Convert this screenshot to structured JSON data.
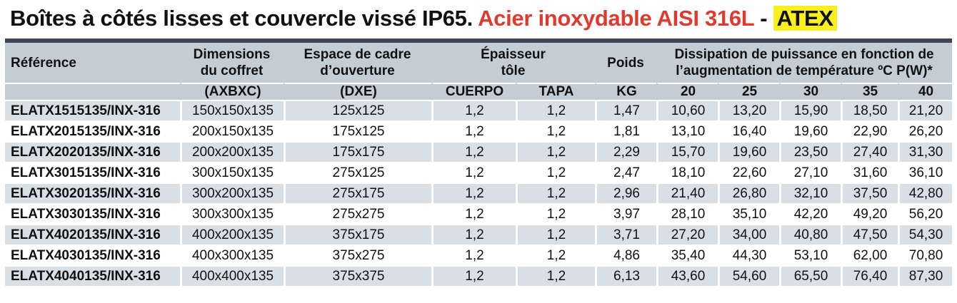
{
  "title": {
    "main": "Boîtes à côtés lisses et couvercle vissé IP65.",
    "material": "Acier inoxydable AISI 316L",
    "separator": "-",
    "certification": "ATEX"
  },
  "colors": {
    "material": "#e03a2f",
    "certification_bg": "#f7ef1e",
    "header_bg": "#c4cdd4",
    "stripe": "#d8e0e6",
    "top_bar": "#3d4652"
  },
  "headers": {
    "reference": "Référence",
    "dimensions_1": "Dimensions",
    "dimensions_2": "du coffret",
    "cutout_1": "Espace de cadre",
    "cutout_2": "d’ouverture",
    "thickness_1": "Épaisseur",
    "thickness_2": "tôle",
    "weight": "Poids",
    "dissipation_1": "Dissipation de puissance en fonction de",
    "dissipation_2": "l’augmentation de température ºC P(W)*"
  },
  "subheaders": [
    "",
    "(AXBXC)",
    "(DXE)",
    "CUERPO",
    "TAPA",
    "KG",
    "20",
    "25",
    "30",
    "35",
    "40"
  ],
  "rows": [
    [
      "ELATX1515135/INX-316",
      "150x150x135",
      "125x125",
      "1,2",
      "1,2",
      "1,47",
      "10,60",
      "13,20",
      "15,90",
      "18,50",
      "21,20"
    ],
    [
      "ELATX2015135/INX-316",
      "200x150x135",
      "175x125",
      "1,2",
      "1,2",
      "1,81",
      "13,10",
      "16,40",
      "19,60",
      "22,90",
      "26,20"
    ],
    [
      "ELATX2020135/INX-316",
      "200x200x135",
      "175x175",
      "1,2",
      "1,2",
      "2,29",
      "15,70",
      "19,60",
      "23,50",
      "27,40",
      "31,30"
    ],
    [
      "ELATX3015135/INX-316",
      "300x150x135",
      "275x125",
      "1,2",
      "1,2",
      "2,47",
      "18,10",
      "22,60",
      "27,10",
      "31,60",
      "36,10"
    ],
    [
      "ELATX3020135/INX-316",
      "300x200x135",
      "275x175",
      "1,2",
      "1,2",
      "2,96",
      "21,40",
      "26,80",
      "32,10",
      "37,50",
      "42,80"
    ],
    [
      "ELATX3030135/INX-316",
      "300x300x135",
      "275x275",
      "1,2",
      "1,2",
      "3,97",
      "28,10",
      "35,10",
      "42,20",
      "49,20",
      "56,20"
    ],
    [
      "ELATX4020135/INX-316",
      "400x200x135",
      "375x175",
      "1,2",
      "1,2",
      "3,71",
      "27,20",
      "34,00",
      "40,80",
      "47,50",
      "54,30"
    ],
    [
      "ELATX4030135/INX-316",
      "400x300x135",
      "375x275",
      "1,2",
      "1,2",
      "4,86",
      "35,40",
      "44,30",
      "53,10",
      "62,00",
      "70,80"
    ],
    [
      "ELATX4040135/INX-316",
      "400x400x135",
      "375x375",
      "1,2",
      "1,2",
      "6,13",
      "43,60",
      "54,60",
      "65,50",
      "76,40",
      "87,30"
    ]
  ]
}
